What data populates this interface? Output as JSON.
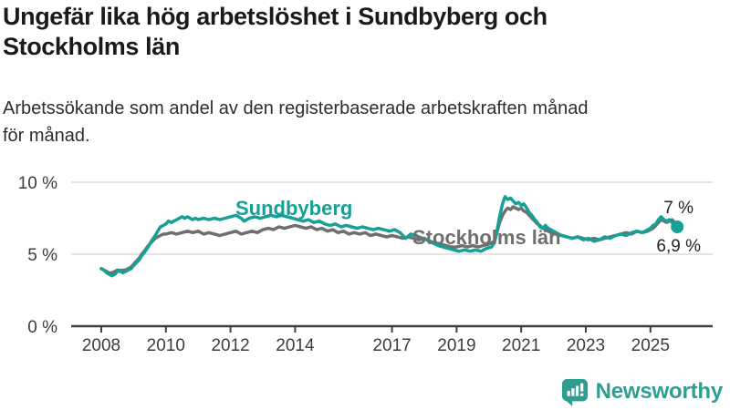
{
  "header": {
    "title_lines": [
      "Ungefär lika hög arbetslöshet i Sundbyberg och",
      "Stockholms län"
    ],
    "subtitle_lines": [
      "Arbetssökande som andel av den registerbaserade arbetskraften månad",
      "för månad."
    ]
  },
  "footer": {
    "brand": "Newsworthy",
    "brand_color": "#2f9d90",
    "logo_icon": "bar-chart-exclamation-bubble"
  },
  "colors": {
    "sundbyberg": "#16a096",
    "stockholm": "#6f6f6f",
    "gridline": "#dcdcdc",
    "axis": "#3f3f3f",
    "text": "#1a1a1a"
  },
  "chart_data": {
    "type": "line",
    "title": "Ungefär lika hög arbetslöshet i Sundbyberg och Stockholms län",
    "subtitle": "Arbetssökande som andel av den registerbaserade arbetskraften månad för månad.",
    "unit": "%",
    "xlabel": "",
    "ylabel": "",
    "ylim": [
      0,
      10.5
    ],
    "xlim": [
      2007.8,
      2026.2
    ],
    "grid": "horizontal",
    "legend_position": "inline-labels",
    "x_ticks": [
      2008,
      2010,
      2012,
      2014,
      2017,
      2019,
      2021,
      2023,
      2025
    ],
    "y_ticks": [
      {
        "value": 0,
        "label": "0 %"
      },
      {
        "value": 5,
        "label": "5 %"
      },
      {
        "value": 10,
        "label": "10 %"
      }
    ],
    "series": [
      {
        "name": "Sundbyberg",
        "color": "#16a096",
        "end_label": "6,9 %",
        "latest_value": 6.9,
        "end_dot": true,
        "points": [
          [
            2008.0,
            4.0
          ],
          [
            2008.08,
            3.9
          ],
          [
            2008.17,
            3.7
          ],
          [
            2008.25,
            3.6
          ],
          [
            2008.33,
            3.5
          ],
          [
            2008.42,
            3.6
          ],
          [
            2008.5,
            3.8
          ],
          [
            2008.58,
            3.9
          ],
          [
            2008.67,
            3.7
          ],
          [
            2008.75,
            3.8
          ],
          [
            2008.83,
            3.9
          ],
          [
            2008.92,
            4.0
          ],
          [
            2009.0,
            4.2
          ],
          [
            2009.08,
            4.4
          ],
          [
            2009.17,
            4.6
          ],
          [
            2009.25,
            4.9
          ],
          [
            2009.33,
            5.1
          ],
          [
            2009.42,
            5.4
          ],
          [
            2009.5,
            5.7
          ],
          [
            2009.58,
            6.0
          ],
          [
            2009.67,
            6.3
          ],
          [
            2009.75,
            6.6
          ],
          [
            2009.83,
            6.9
          ],
          [
            2009.92,
            7.0
          ],
          [
            2010.0,
            7.1
          ],
          [
            2010.08,
            7.3
          ],
          [
            2010.17,
            7.2
          ],
          [
            2010.25,
            7.3
          ],
          [
            2010.33,
            7.4
          ],
          [
            2010.5,
            7.6
          ],
          [
            2010.58,
            7.5
          ],
          [
            2010.67,
            7.6
          ],
          [
            2010.75,
            7.5
          ],
          [
            2010.83,
            7.4
          ],
          [
            2010.92,
            7.5
          ],
          [
            2011.0,
            7.4
          ],
          [
            2011.17,
            7.5
          ],
          [
            2011.33,
            7.4
          ],
          [
            2011.5,
            7.5
          ],
          [
            2011.67,
            7.4
          ],
          [
            2011.83,
            7.5
          ],
          [
            2012.0,
            7.6
          ],
          [
            2012.17,
            7.7
          ],
          [
            2012.33,
            7.5
          ],
          [
            2012.42,
            7.3
          ],
          [
            2012.58,
            7.5
          ],
          [
            2012.75,
            7.6
          ],
          [
            2012.92,
            7.5
          ],
          [
            2013.08,
            7.6
          ],
          [
            2013.25,
            7.7
          ],
          [
            2013.42,
            7.6
          ],
          [
            2013.58,
            7.7
          ],
          [
            2013.75,
            7.6
          ],
          [
            2013.92,
            7.5
          ],
          [
            2014.08,
            7.4
          ],
          [
            2014.25,
            7.3
          ],
          [
            2014.42,
            7.4
          ],
          [
            2014.58,
            7.2
          ],
          [
            2014.75,
            7.3
          ],
          [
            2014.92,
            7.1
          ],
          [
            2015.08,
            7.0
          ],
          [
            2015.25,
            7.1
          ],
          [
            2015.42,
            6.9
          ],
          [
            2015.58,
            7.0
          ],
          [
            2015.75,
            6.9
          ],
          [
            2015.92,
            6.8
          ],
          [
            2016.08,
            6.9
          ],
          [
            2016.25,
            6.8
          ],
          [
            2016.42,
            6.7
          ],
          [
            2016.58,
            6.8
          ],
          [
            2016.75,
            6.7
          ],
          [
            2016.92,
            6.6
          ],
          [
            2017.08,
            6.7
          ],
          [
            2017.25,
            6.5
          ],
          [
            2017.42,
            6.1
          ],
          [
            2017.58,
            6.4
          ],
          [
            2017.75,
            6.3
          ],
          [
            2017.92,
            6.1
          ],
          [
            2018.08,
            6.0
          ],
          [
            2018.25,
            5.8
          ],
          [
            2018.42,
            5.6
          ],
          [
            2018.58,
            5.5
          ],
          [
            2018.75,
            5.4
          ],
          [
            2018.92,
            5.3
          ],
          [
            2019.08,
            5.2
          ],
          [
            2019.25,
            5.3
          ],
          [
            2019.42,
            5.2
          ],
          [
            2019.58,
            5.3
          ],
          [
            2019.75,
            5.2
          ],
          [
            2019.92,
            5.4
          ],
          [
            2020.08,
            5.5
          ],
          [
            2020.17,
            5.8
          ],
          [
            2020.25,
            6.6
          ],
          [
            2020.33,
            7.6
          ],
          [
            2020.42,
            8.5
          ],
          [
            2020.5,
            9.0
          ],
          [
            2020.58,
            8.8
          ],
          [
            2020.67,
            8.9
          ],
          [
            2020.75,
            8.7
          ],
          [
            2020.83,
            8.5
          ],
          [
            2020.92,
            8.6
          ],
          [
            2021.0,
            8.4
          ],
          [
            2021.08,
            8.5
          ],
          [
            2021.17,
            8.2
          ],
          [
            2021.25,
            7.9
          ],
          [
            2021.33,
            7.7
          ],
          [
            2021.42,
            7.4
          ],
          [
            2021.5,
            7.2
          ],
          [
            2021.58,
            6.9
          ],
          [
            2021.67,
            6.8
          ],
          [
            2021.75,
            7.0
          ],
          [
            2021.83,
            6.8
          ],
          [
            2021.92,
            6.7
          ],
          [
            2022.08,
            6.5
          ],
          [
            2022.25,
            6.3
          ],
          [
            2022.42,
            6.2
          ],
          [
            2022.58,
            6.1
          ],
          [
            2022.75,
            6.2
          ],
          [
            2022.92,
            6.0
          ],
          [
            2023.08,
            6.1
          ],
          [
            2023.25,
            5.9
          ],
          [
            2023.42,
            6.0
          ],
          [
            2023.58,
            6.2
          ],
          [
            2023.75,
            6.1
          ],
          [
            2023.92,
            6.3
          ],
          [
            2024.08,
            6.4
          ],
          [
            2024.25,
            6.3
          ],
          [
            2024.42,
            6.5
          ],
          [
            2024.58,
            6.6
          ],
          [
            2024.75,
            6.5
          ],
          [
            2024.92,
            6.7
          ],
          [
            2025.0,
            6.8
          ],
          [
            2025.08,
            7.0
          ],
          [
            2025.17,
            7.1
          ],
          [
            2025.25,
            7.4
          ],
          [
            2025.33,
            7.6
          ],
          [
            2025.42,
            7.4
          ],
          [
            2025.5,
            7.3
          ],
          [
            2025.58,
            7.4
          ],
          [
            2025.67,
            7.2
          ],
          [
            2025.75,
            7.1
          ],
          [
            2025.83,
            6.9
          ]
        ]
      },
      {
        "name": "Stockholms län",
        "color": "#6f6f6f",
        "end_label": "7 %",
        "latest_value": 7.0,
        "end_dot": false,
        "points": [
          [
            2008.0,
            4.0
          ],
          [
            2008.08,
            3.9
          ],
          [
            2008.17,
            3.8
          ],
          [
            2008.25,
            3.7
          ],
          [
            2008.33,
            3.7
          ],
          [
            2008.42,
            3.8
          ],
          [
            2008.5,
            3.9
          ],
          [
            2008.58,
            3.8
          ],
          [
            2008.67,
            3.9
          ],
          [
            2008.75,
            3.9
          ],
          [
            2008.83,
            4.0
          ],
          [
            2008.92,
            4.1
          ],
          [
            2009.0,
            4.3
          ],
          [
            2009.08,
            4.5
          ],
          [
            2009.17,
            4.7
          ],
          [
            2009.25,
            5.0
          ],
          [
            2009.33,
            5.2
          ],
          [
            2009.42,
            5.5
          ],
          [
            2009.5,
            5.7
          ],
          [
            2009.58,
            5.9
          ],
          [
            2009.67,
            6.1
          ],
          [
            2009.75,
            6.2
          ],
          [
            2009.83,
            6.3
          ],
          [
            2009.92,
            6.4
          ],
          [
            2010.0,
            6.4
          ],
          [
            2010.17,
            6.5
          ],
          [
            2010.33,
            6.4
          ],
          [
            2010.5,
            6.5
          ],
          [
            2010.67,
            6.6
          ],
          [
            2010.83,
            6.5
          ],
          [
            2011.0,
            6.6
          ],
          [
            2011.17,
            6.4
          ],
          [
            2011.33,
            6.5
          ],
          [
            2011.5,
            6.4
          ],
          [
            2011.67,
            6.3
          ],
          [
            2011.83,
            6.4
          ],
          [
            2012.0,
            6.5
          ],
          [
            2012.17,
            6.6
          ],
          [
            2012.33,
            6.4
          ],
          [
            2012.5,
            6.5
          ],
          [
            2012.67,
            6.6
          ],
          [
            2012.83,
            6.5
          ],
          [
            2013.0,
            6.7
          ],
          [
            2013.17,
            6.8
          ],
          [
            2013.33,
            6.7
          ],
          [
            2013.5,
            6.9
          ],
          [
            2013.67,
            6.8
          ],
          [
            2013.83,
            6.9
          ],
          [
            2014.0,
            7.0
          ],
          [
            2014.17,
            6.9
          ],
          [
            2014.33,
            6.8
          ],
          [
            2014.5,
            6.9
          ],
          [
            2014.67,
            6.7
          ],
          [
            2014.83,
            6.8
          ],
          [
            2015.0,
            6.6
          ],
          [
            2015.17,
            6.7
          ],
          [
            2015.33,
            6.5
          ],
          [
            2015.5,
            6.6
          ],
          [
            2015.67,
            6.4
          ],
          [
            2015.83,
            6.5
          ],
          [
            2016.0,
            6.4
          ],
          [
            2016.17,
            6.5
          ],
          [
            2016.33,
            6.3
          ],
          [
            2016.5,
            6.4
          ],
          [
            2016.67,
            6.3
          ],
          [
            2016.83,
            6.2
          ],
          [
            2017.0,
            6.3
          ],
          [
            2017.17,
            6.2
          ],
          [
            2017.33,
            6.1
          ],
          [
            2017.5,
            6.2
          ],
          [
            2017.67,
            6.1
          ],
          [
            2017.83,
            6.0
          ],
          [
            2018.0,
            6.1
          ],
          [
            2018.17,
            5.9
          ],
          [
            2018.33,
            5.8
          ],
          [
            2018.5,
            5.7
          ],
          [
            2018.67,
            5.6
          ],
          [
            2018.83,
            5.5
          ],
          [
            2019.0,
            5.5
          ],
          [
            2019.17,
            5.6
          ],
          [
            2019.33,
            5.5
          ],
          [
            2019.5,
            5.6
          ],
          [
            2019.67,
            5.5
          ],
          [
            2019.83,
            5.6
          ],
          [
            2020.0,
            5.7
          ],
          [
            2020.17,
            5.9
          ],
          [
            2020.25,
            6.5
          ],
          [
            2020.33,
            7.2
          ],
          [
            2020.42,
            7.7
          ],
          [
            2020.5,
            8.0
          ],
          [
            2020.58,
            8.2
          ],
          [
            2020.67,
            8.1
          ],
          [
            2020.75,
            8.3
          ],
          [
            2020.83,
            8.2
          ],
          [
            2020.92,
            8.1
          ],
          [
            2021.0,
            8.2
          ],
          [
            2021.08,
            8.0
          ],
          [
            2021.17,
            7.9
          ],
          [
            2021.25,
            7.7
          ],
          [
            2021.33,
            7.5
          ],
          [
            2021.42,
            7.3
          ],
          [
            2021.5,
            7.1
          ],
          [
            2021.58,
            7.0
          ],
          [
            2021.67,
            6.8
          ],
          [
            2021.75,
            6.7
          ],
          [
            2021.83,
            6.6
          ],
          [
            2021.92,
            6.5
          ],
          [
            2022.08,
            6.4
          ],
          [
            2022.25,
            6.3
          ],
          [
            2022.42,
            6.2
          ],
          [
            2022.58,
            6.1
          ],
          [
            2022.75,
            6.2
          ],
          [
            2022.92,
            6.1
          ],
          [
            2023.08,
            6.0
          ],
          [
            2023.25,
            6.1
          ],
          [
            2023.42,
            6.0
          ],
          [
            2023.58,
            6.1
          ],
          [
            2023.75,
            6.2
          ],
          [
            2023.92,
            6.3
          ],
          [
            2024.08,
            6.4
          ],
          [
            2024.25,
            6.5
          ],
          [
            2024.42,
            6.4
          ],
          [
            2024.58,
            6.6
          ],
          [
            2024.75,
            6.5
          ],
          [
            2024.92,
            6.6
          ],
          [
            2025.0,
            6.7
          ],
          [
            2025.08,
            6.8
          ],
          [
            2025.17,
            7.0
          ],
          [
            2025.25,
            7.2
          ],
          [
            2025.33,
            7.4
          ],
          [
            2025.42,
            7.3
          ],
          [
            2025.5,
            7.2
          ],
          [
            2025.58,
            7.3
          ],
          [
            2025.67,
            7.4
          ],
          [
            2025.75,
            7.2
          ],
          [
            2025.83,
            7.0
          ]
        ]
      }
    ]
  }
}
